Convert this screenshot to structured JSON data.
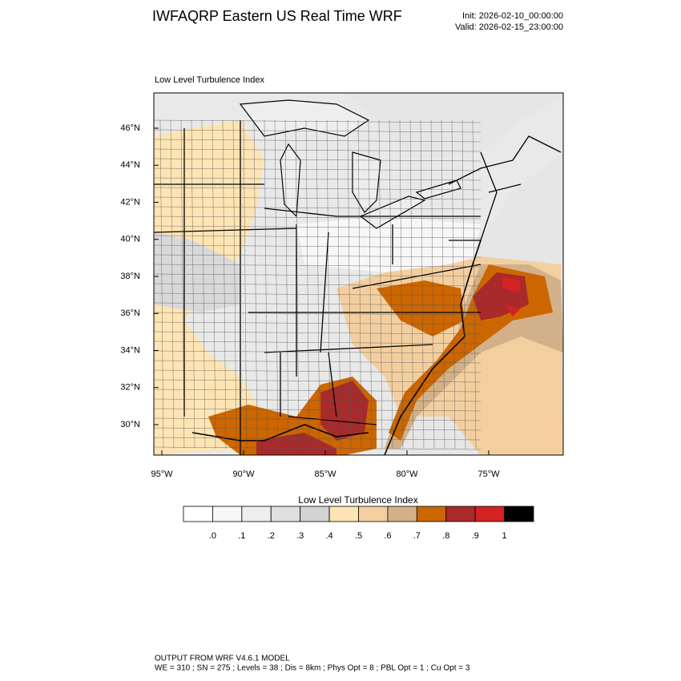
{
  "header": {
    "title": "IWFAQRP Eastern US Real Time WRF",
    "init": "Init: 2026-02-10_00:00:00",
    "valid": "Valid: 2026-02-15_23:00:00"
  },
  "map": {
    "subtitle": "Low Level Turbulence Index",
    "lat_labels": [
      "46°N",
      "44°N",
      "42°N",
      "40°N",
      "38°N",
      "36°N",
      "34°N",
      "32°N",
      "30°N"
    ],
    "lon_labels": [
      "95°W",
      "90°W",
      "85°W",
      "80°W",
      "75°W"
    ]
  },
  "colorbar": {
    "title": "Low Level Turbulence Index",
    "colors": [
      "#ffffff",
      "#f7f7f7",
      "#eeeeee",
      "#e0e0e0",
      "#d3d3d3",
      "#fde4b4",
      "#f3cfa0",
      "#d2b089",
      "#cc6600",
      "#a82a2a",
      "#d52222",
      "#000000"
    ],
    "labels": [
      ".0",
      ".1",
      ".2",
      ".3",
      ".4",
      ".5",
      ".6",
      ".7",
      ".8",
      ".9",
      "1"
    ]
  },
  "footer": {
    "line1": "OUTPUT FROM WRF V4.6.1 MODEL",
    "line2": "WE = 310 ; SN = 275 ; Levels = 38 ; Dis = 8km ; Phys Opt = 8 ; PBL Opt = 1 ; Cu Opt = 3"
  }
}
